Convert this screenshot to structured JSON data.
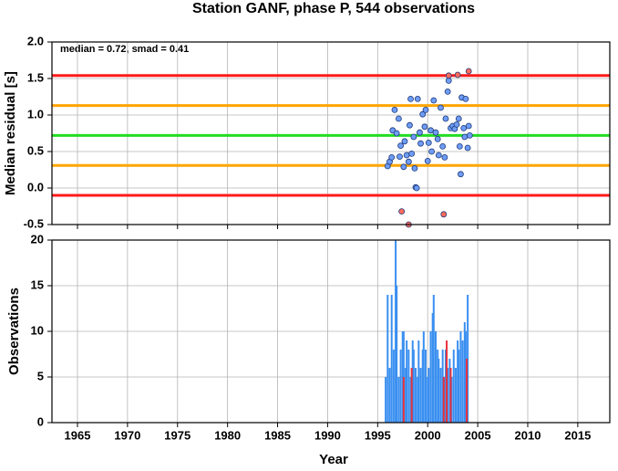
{
  "chart_data": [
    {
      "type": "scatter",
      "title": "Station GANF, phase P, 544 observations",
      "annotation": "median = 0.72, smad = 0.41",
      "ylabel": "Median residual [s]",
      "xlim": [
        1962.45,
        2018.2
      ],
      "xticks": [
        1965,
        1970,
        1975,
        1980,
        1985,
        1990,
        1995,
        2000,
        2005,
        2010,
        2015
      ],
      "ylim": [
        -0.5,
        2.0
      ],
      "yticks": [
        -0.5,
        {
          "value": 0,
          "label": "0.0"
        },
        0.5,
        {
          "value": 1,
          "label": "1.0"
        },
        1.5,
        {
          "value": 2,
          "label": "2.0"
        }
      ],
      "grid": true,
      "reference_lines": [
        {
          "value": 1.54,
          "color": "#ff1a1a"
        },
        {
          "value": 1.13,
          "color": "#ffa500"
        },
        {
          "value": 0.72,
          "color": "#22dd22"
        },
        {
          "value": 0.31,
          "color": "#ffa500"
        },
        {
          "value": -0.1,
          "color": "#ff1a1a"
        }
      ],
      "series": [
        {
          "color": "#6f9cf5",
          "x": [
            1996.0,
            1996.2,
            1996.4,
            1996.5,
            1996.7,
            1996.9,
            1997.1,
            1997.2,
            1997.3,
            1997.6,
            1997.7,
            1997.9,
            1998.1,
            1998.2,
            1998.3,
            1998.4,
            1998.6,
            1998.7,
            1998.8,
            1998.9,
            1999.0,
            1999.2,
            1999.3,
            1999.5,
            1999.7,
            1999.8,
            2000.0,
            2000.1,
            2000.3,
            2000.4,
            2000.6,
            2000.8,
            2001.0,
            2001.1,
            2001.3,
            2001.5,
            2001.7,
            2001.8,
            2002.0,
            2002.1,
            2002.3,
            2002.5,
            2002.7,
            2002.9,
            2003.1,
            2003.2,
            2003.3,
            2003.4,
            2003.6,
            2003.7,
            2003.8,
            2004.0,
            2004.2,
            2004.1
          ],
          "values": [
            0.3,
            0.36,
            0.42,
            0.79,
            1.07,
            0.75,
            0.95,
            0.43,
            0.58,
            0.29,
            0.64,
            0.45,
            0.36,
            0.86,
            1.22,
            0.47,
            0.7,
            0.27,
            0.01,
            0.0,
            1.22,
            0.76,
            0.61,
            1.01,
            0.84,
            1.07,
            0.37,
            0.62,
            0.79,
            0.5,
            1.2,
            0.76,
            0.67,
            0.45,
            1.1,
            0.57,
            0.42,
            0.95,
            1.32,
            1.47,
            0.82,
            0.85,
            0.81,
            0.87,
            0.95,
            0.57,
            0.19,
            1.24,
            0.82,
            0.7,
            1.22,
            0.55,
            0.72,
            0.85
          ]
        },
        {
          "color": "#ff6a5e",
          "x": [
            2002.1,
            2003.0,
            2004.1,
            1997.4,
            1998.1,
            2001.6
          ],
          "values": [
            1.54,
            1.55,
            1.6,
            -0.32,
            -0.5,
            -0.36
          ]
        }
      ]
    },
    {
      "type": "bar",
      "ylabel": "Observations",
      "xlabel": "Year",
      "xlim": [
        1962.45,
        2018.2
      ],
      "xticks": [
        1965,
        1970,
        1975,
        1980,
        1985,
        1990,
        1995,
        2000,
        2005,
        2010,
        2015
      ],
      "ylim": [
        0,
        20
      ],
      "yticks": [
        0,
        5,
        10,
        15,
        20
      ],
      "grid": true,
      "series": [
        {
          "color": "#3a8ff0",
          "x": [
            1995.8,
            1996.0,
            1996.2,
            1996.4,
            1996.6,
            1996.8,
            1996.9,
            1997.1,
            1997.3,
            1997.5,
            1997.6,
            1997.8,
            1997.9,
            1998.1,
            1998.3,
            1998.5,
            1998.6,
            1998.8,
            1999.0,
            1999.1,
            1999.3,
            1999.5,
            1999.6,
            1999.8,
            2000.0,
            2000.1,
            2000.3,
            2000.5,
            2000.6,
            2000.8,
            2001.0,
            2001.1,
            2001.3,
            2001.5,
            2001.7,
            2001.8,
            2002.0,
            2002.2,
            2002.4,
            2002.6,
            2002.8,
            2003.0,
            2003.1,
            2003.3,
            2003.5,
            2003.7,
            2003.8,
            2004.0
          ],
          "values": [
            5,
            14,
            6,
            14,
            8,
            20,
            15,
            5,
            8,
            10,
            10,
            6,
            9,
            8,
            5,
            9,
            8,
            6,
            5,
            9,
            6,
            8,
            10,
            8,
            5,
            6,
            10,
            12,
            14,
            10,
            8,
            7,
            6,
            8,
            5,
            8,
            6,
            7,
            5,
            8,
            6,
            9,
            8,
            10,
            9,
            11,
            10,
            14
          ]
        },
        {
          "color": "#e8323c",
          "x": [
            1997.6,
            1998.4,
            2001.6,
            2001.9,
            2002.3,
            2003.9
          ],
          "values": [
            5,
            6,
            5,
            9,
            6,
            7
          ]
        }
      ]
    }
  ]
}
